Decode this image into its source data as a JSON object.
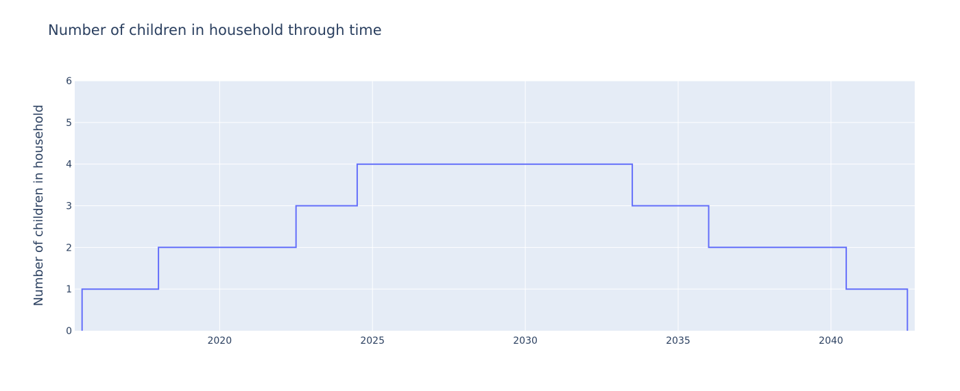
{
  "chart_data": {
    "type": "line",
    "line_shape": "step",
    "title": "Number of children in household through time",
    "xlabel": "",
    "ylabel": "Number of children in household",
    "xlim": [
      2015.26,
      2042.74
    ],
    "ylim": [
      0,
      6
    ],
    "x_ticks": [
      2020,
      2025,
      2030,
      2035,
      2040
    ],
    "y_ticks": [
      0,
      1,
      2,
      3,
      4,
      5,
      6
    ],
    "grid": true,
    "colors": {
      "plot_bg": "#e5ecf6",
      "grid": "#ffffff",
      "line": "#636efa",
      "text": "#2a3f5f"
    },
    "series": [
      {
        "x": [
          2015.5,
          2015.5,
          2018.0,
          2018.0,
          2022.5,
          2022.5,
          2024.5,
          2024.5,
          2033.5,
          2033.5,
          2036.0,
          2036.0,
          2040.5,
          2040.5,
          2042.5,
          2042.5
        ],
        "y": [
          0,
          1,
          1,
          2,
          2,
          3,
          3,
          4,
          4,
          3,
          3,
          2,
          2,
          1,
          1,
          0
        ]
      }
    ]
  }
}
